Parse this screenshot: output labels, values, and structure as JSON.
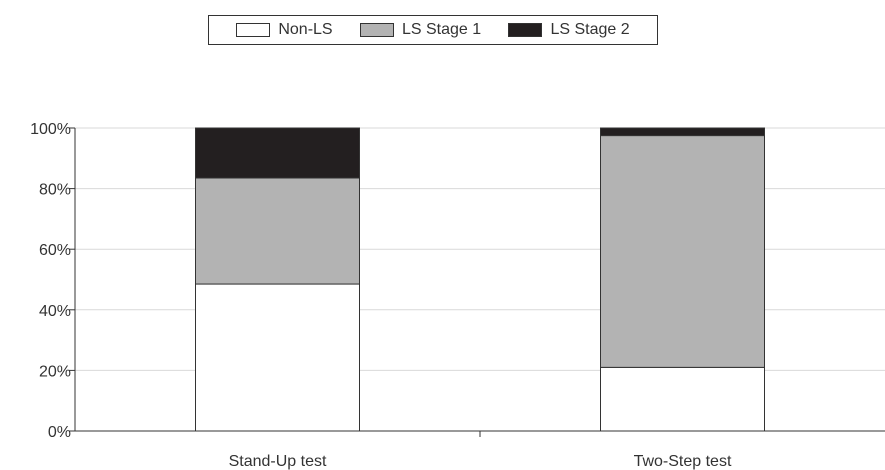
{
  "chart_data": {
    "type": "bar",
    "stacked": true,
    "categories": [
      "Stand-Up test",
      "Two-Step test"
    ],
    "series": [
      {
        "name": "Non-LS",
        "values": [
          48.5,
          21
        ],
        "color": "#ffffff"
      },
      {
        "name": "LS Stage 1",
        "values": [
          35,
          76.5
        ],
        "color": "#b3b3b3"
      },
      {
        "name": "LS Stage 2",
        "values": [
          16.5,
          2.5
        ],
        "color": "#231f20"
      }
    ],
    "y_ticks": [
      "0%",
      "20%",
      "40%",
      "60%",
      "80%",
      "100%"
    ],
    "ylim": [
      0,
      100
    ],
    "grid": true,
    "legend_position": "top-center"
  }
}
